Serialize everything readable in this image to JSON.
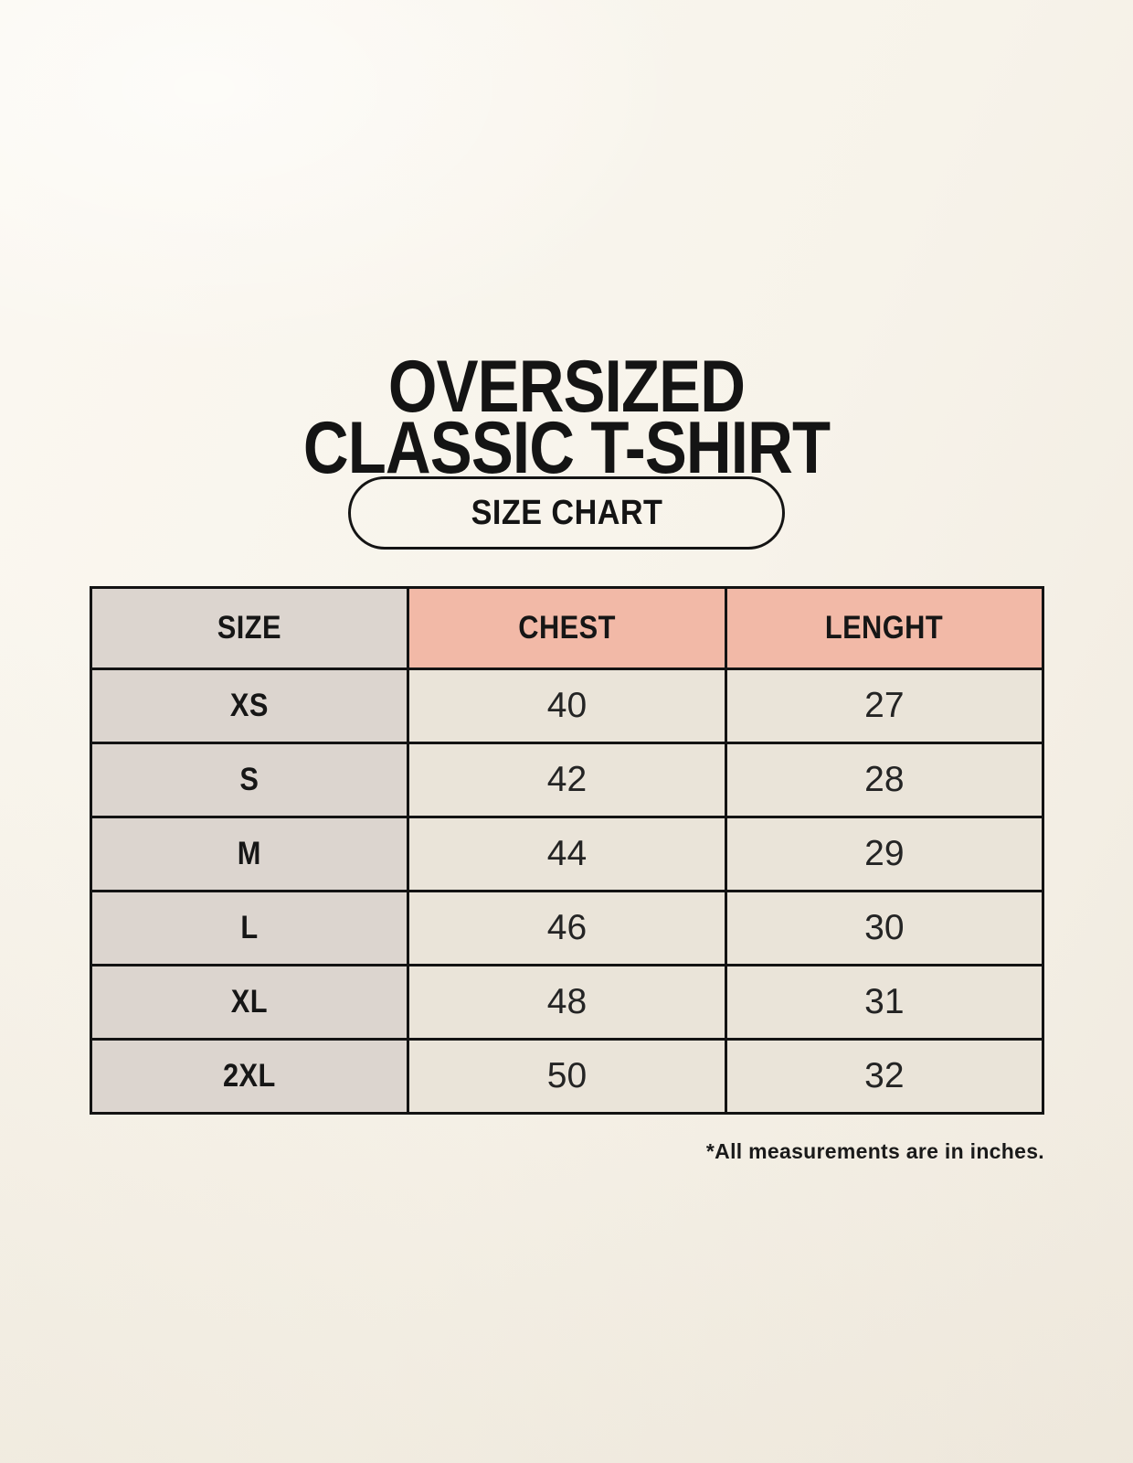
{
  "page": {
    "title_line1": "OVERSIZED",
    "title_line2": "CLASSIC T-SHIRT",
    "badge_label": "SIZE CHART",
    "footnote": "*All measurements are in inches."
  },
  "colors": {
    "background": "#f6f2e9",
    "header_accent": "#f2b9a7",
    "size_column_bg": "#dcd5cf",
    "data_cell_bg": "#eae4d9",
    "border": "#131313",
    "text": "#161616"
  },
  "chart_data": {
    "type": "table",
    "title": "OVERSIZED CLASSIC T-SHIRT",
    "subtitle": "SIZE CHART",
    "columns": [
      "SIZE",
      "CHEST",
      "LENGHT"
    ],
    "rows": [
      {
        "size": "XS",
        "chest": 40,
        "lenght": 27
      },
      {
        "size": "S",
        "chest": 42,
        "lenght": 28
      },
      {
        "size": "M",
        "chest": 44,
        "lenght": 29
      },
      {
        "size": "L",
        "chest": 46,
        "lenght": 30
      },
      {
        "size": "XL",
        "chest": 48,
        "lenght": 31
      },
      {
        "size": "2XL",
        "chest": 50,
        "lenght": 32
      }
    ],
    "units": "inches",
    "units_note": "*All measurements are in inches."
  }
}
